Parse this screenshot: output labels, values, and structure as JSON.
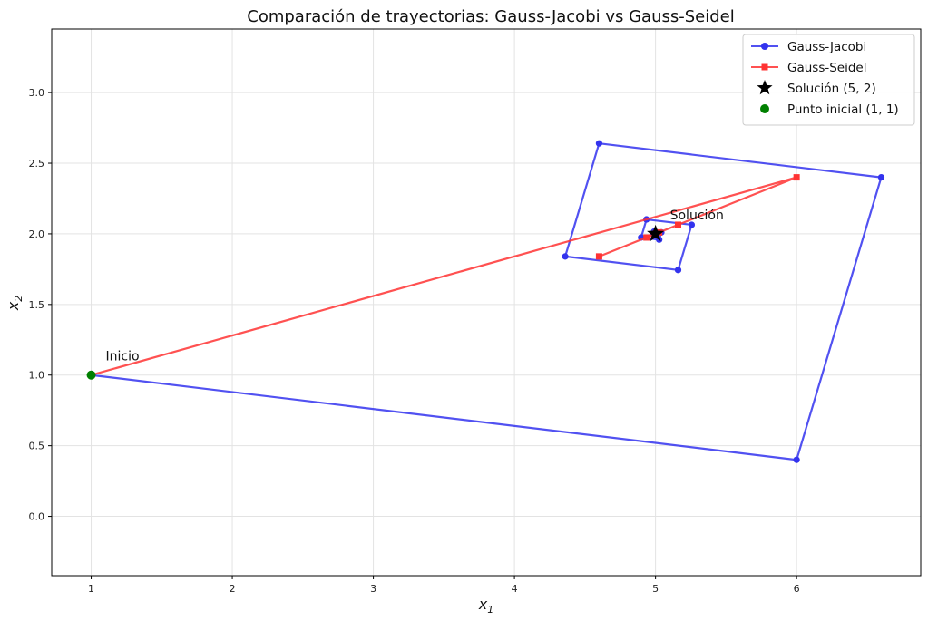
{
  "chart_data": {
    "type": "line",
    "title": "Comparación de trayectorias: Gauss-Jacobi vs Gauss-Seidel",
    "xlabel_main": "x",
    "xlabel_sub": "1",
    "ylabel_main": "x",
    "ylabel_sub": "2",
    "xlim": [
      0.72,
      6.88
    ],
    "ylim": [
      -0.42,
      3.45
    ],
    "xticks": [
      1,
      2,
      3,
      4,
      5,
      6
    ],
    "yticks": [
      0.0,
      0.5,
      1.0,
      1.5,
      2.0,
      2.5,
      3.0
    ],
    "grid": true,
    "legend_position": "top-right",
    "series": [
      {
        "name": "Gauss-Jacobi",
        "color": "#3333ee",
        "marker": "circle",
        "points": [
          [
            1,
            1
          ],
          [
            6,
            0.4
          ],
          [
            6.6,
            2.4
          ],
          [
            4.6,
            2.64
          ],
          [
            4.36,
            1.84
          ],
          [
            5.16,
            1.744
          ],
          [
            5.256,
            2.064
          ],
          [
            4.936,
            2.102
          ],
          [
            4.898,
            1.974
          ],
          [
            5.026,
            1.959
          ],
          [
            5.041,
            2.01
          ],
          [
            4.99,
            2.016
          ],
          [
            4.984,
            1.996
          ],
          [
            5.004,
            1.993
          ],
          [
            5.007,
            2.002
          ]
        ]
      },
      {
        "name": "Gauss-Seidel",
        "color": "#ff3333",
        "marker": "square",
        "points": [
          [
            1,
            1
          ],
          [
            6,
            2.4
          ],
          [
            4.6,
            1.84
          ],
          [
            5.16,
            2.064
          ],
          [
            4.936,
            1.974
          ],
          [
            5.026,
            2.01
          ],
          [
            4.99,
            1.996
          ],
          [
            5.004,
            2.002
          ],
          [
            4.998,
            1.999
          ]
        ]
      }
    ],
    "solution": {
      "name": "Solución (5, 2)",
      "x": 5,
      "y": 2,
      "color": "#000000",
      "marker": "star"
    },
    "start": {
      "name": "Punto inicial (1, 1)",
      "x": 1,
      "y": 1,
      "color": "#008000",
      "marker": "circle"
    },
    "annotations": [
      {
        "text": "Inicio",
        "x": 1,
        "y": 1
      },
      {
        "text": "Solución",
        "x": 5,
        "y": 2
      }
    ]
  }
}
